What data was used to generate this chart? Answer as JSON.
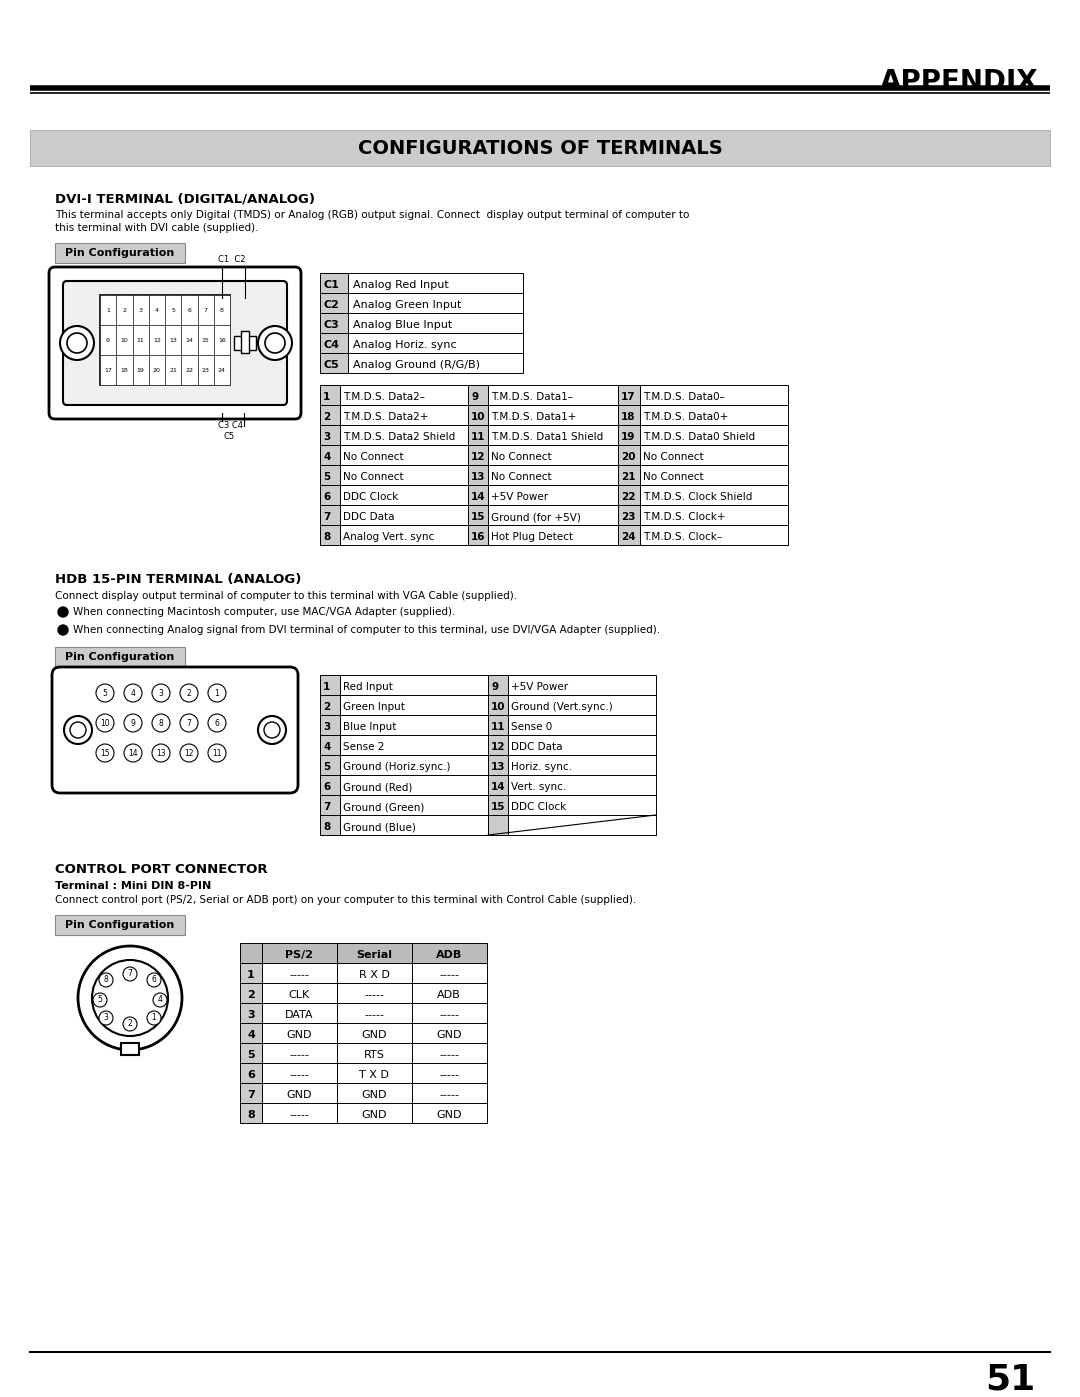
{
  "page_title": "APPENDIX",
  "section_title": "CONFIGURATIONS OF TERMINALS",
  "dvi_title": "DVI-I TERMINAL (DIGITAL/ANALOG)",
  "dvi_desc_line1": "This terminal accepts only Digital (TMDS) or Analog (RGB) output signal. Connect  display output terminal of computer to",
  "dvi_desc_line2": "this terminal with DVI cable (supplied).",
  "pin_config_label": "Pin Configuration",
  "dvi_c_table": [
    [
      "C1",
      "Analog Red Input"
    ],
    [
      "C2",
      "Analog Green Input"
    ],
    [
      "C3",
      "Analog Blue Input"
    ],
    [
      "C4",
      "Analog Horiz. sync"
    ],
    [
      "C5",
      "Analog Ground (R/G/B)"
    ]
  ],
  "dvi_main_table": [
    [
      "1",
      "T.M.D.S. Data2–",
      "9",
      "T.M.D.S. Data1–",
      "17",
      "T.M.D.S. Data0–"
    ],
    [
      "2",
      "T.M.D.S. Data2+",
      "10",
      "T.M.D.S. Data1+",
      "18",
      "T.M.D.S. Data0+"
    ],
    [
      "3",
      "T.M.D.S. Data2 Shield",
      "11",
      "T.M.D.S. Data1 Shield",
      "19",
      "T.M.D.S. Data0 Shield"
    ],
    [
      "4",
      "No Connect",
      "12",
      "No Connect",
      "20",
      "No Connect"
    ],
    [
      "5",
      "No Connect",
      "13",
      "No Connect",
      "21",
      "No Connect"
    ],
    [
      "6",
      "DDC Clock",
      "14",
      "+5V Power",
      "22",
      "T.M.D.S. Clock Shield"
    ],
    [
      "7",
      "DDC Data",
      "15",
      "Ground (for +5V)",
      "23",
      "T.M.D.S. Clock+"
    ],
    [
      "8",
      "Analog Vert. sync",
      "16",
      "Hot Plug Detect",
      "24",
      "T.M.D.S. Clock–"
    ]
  ],
  "hdb_title": "HDB 15-PIN TERMINAL (ANALOG)",
  "hdb_desc1": "Connect display output terminal of computer to this terminal with VGA Cable (supplied).",
  "hdb_desc2": "When connecting Macintosh computer, use MAC/VGA Adapter (supplied).",
  "hdb_desc3": "When connecting Analog signal from DVI terminal of computer to this terminal, use DVI/VGA Adapter (supplied).",
  "hdb_table": [
    [
      "1",
      "Red Input",
      "9",
      "+5V Power"
    ],
    [
      "2",
      "Green Input",
      "10",
      "Ground (Vert.sync.)"
    ],
    [
      "3",
      "Blue Input",
      "11",
      "Sense 0"
    ],
    [
      "4",
      "Sense 2",
      "12",
      "DDC Data"
    ],
    [
      "5",
      "Ground (Horiz.sync.)",
      "13",
      "Horiz. sync."
    ],
    [
      "6",
      "Ground (Red)",
      "14",
      "Vert. sync."
    ],
    [
      "7",
      "Ground (Green)",
      "15",
      "DDC Clock"
    ],
    [
      "8",
      "Ground (Blue)",
      "",
      ""
    ]
  ],
  "ctrl_title": "CONTROL PORT CONNECTOR",
  "ctrl_subtitle": "Terminal : Mini DIN 8-PIN",
  "ctrl_desc": "Connect control port (PS/2, Serial or ADB port) on your computer to this terminal with Control Cable (supplied).",
  "ctrl_table_headers": [
    "",
    "PS/2",
    "Serial",
    "ADB"
  ],
  "ctrl_table": [
    [
      "1",
      "-----",
      "R X D",
      "-----"
    ],
    [
      "2",
      "CLK",
      "-----",
      "ADB"
    ],
    [
      "3",
      "DATA",
      "-----",
      "-----"
    ],
    [
      "4",
      "GND",
      "GND",
      "GND"
    ],
    [
      "5",
      "-----",
      "RTS",
      "-----"
    ],
    [
      "6",
      "-----",
      "T X D",
      "-----"
    ],
    [
      "7",
      "GND",
      "GND",
      "-----"
    ],
    [
      "8",
      "-----",
      "GND",
      "GND"
    ]
  ],
  "page_number": "51"
}
